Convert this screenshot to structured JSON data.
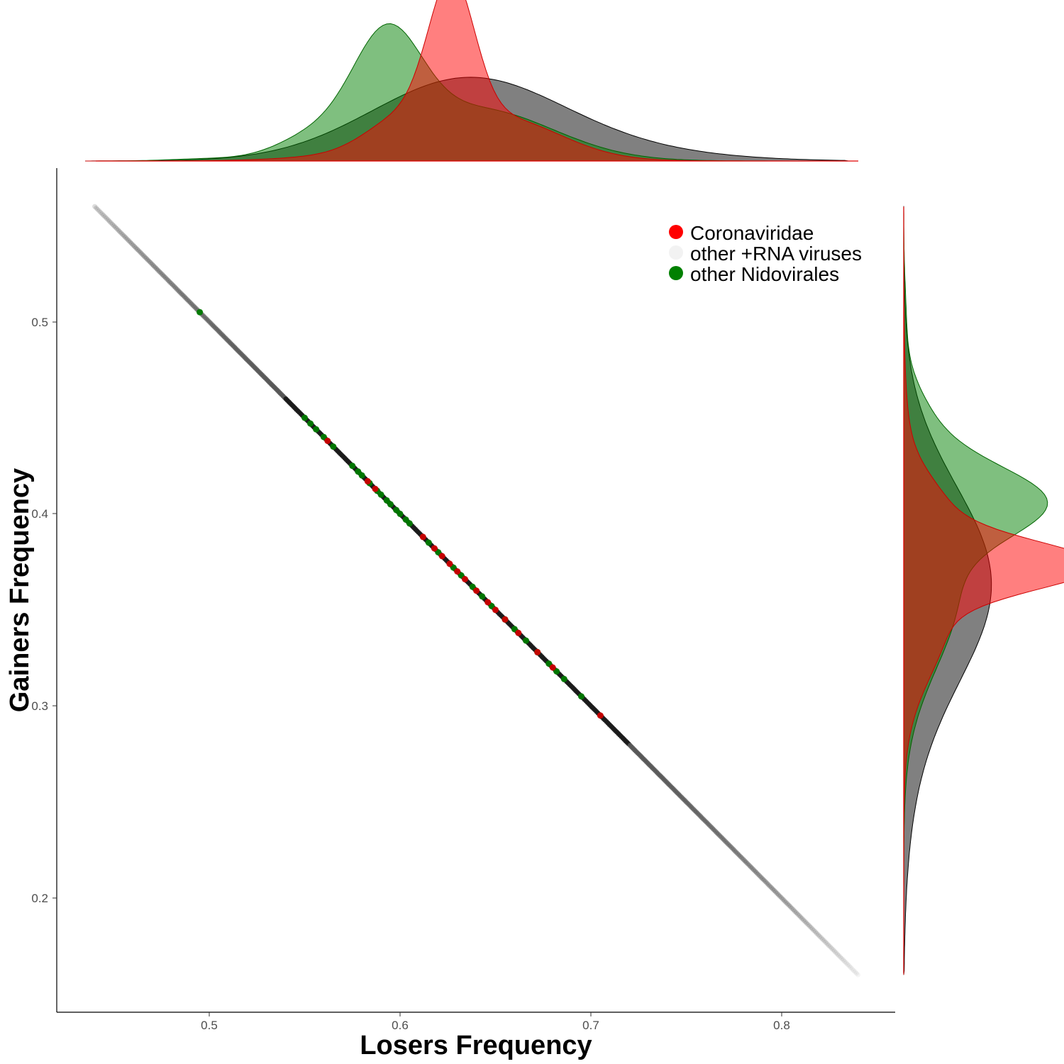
{
  "chart_data": {
    "type": "scatter",
    "xlabel": "Losers Frequency",
    "ylabel": "Gainers Frequency",
    "xlim": [
      0.42,
      0.86
    ],
    "ylim": [
      0.14,
      0.58
    ],
    "x_ticks": [
      "0.5",
      "0.6",
      "0.7",
      "0.8"
    ],
    "y_ticks": [
      "0.2",
      "0.3",
      "0.4",
      "0.5"
    ],
    "relationship": "y = 1 - x",
    "grid": false,
    "legend_position": "top-right",
    "series": [
      {
        "name": "Coronaviridae",
        "color": "#ff0000",
        "x_range": [
          0.56,
          0.705
        ],
        "marginal_density_mode_x": 0.627,
        "marginal_density_mode_y": 0.373
      },
      {
        "name": "other +RNA viruses",
        "color": "#f2f2f2",
        "x_range": [
          0.44,
          0.84
        ],
        "marginal_density_mode_x": 0.635,
        "marginal_density_mode_y": 0.365
      },
      {
        "name": "other Nidovirales",
        "color": "#008000",
        "x_range": [
          0.495,
          0.695
        ],
        "marginal_density_mode_x": 0.593,
        "marginal_density_mode_y": 0.407
      }
    ]
  }
}
